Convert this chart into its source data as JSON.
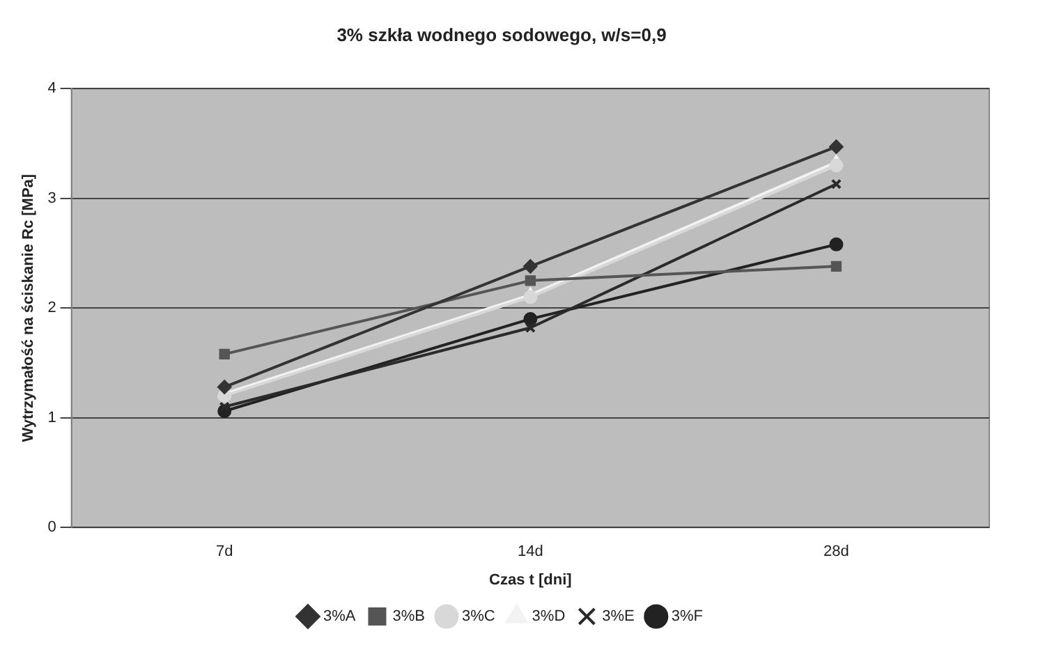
{
  "chart_data": {
    "type": "line",
    "title": "3% szkła wodnego sodowego, w/s=0,9",
    "xlabel": "Czas t [dni]",
    "ylabel": "Wytrzymałość na ściskanie Rc [MPa]",
    "categories": [
      "7d",
      "14d",
      "28d"
    ],
    "ylim": [
      0,
      4
    ],
    "yticks": [
      0,
      1,
      2,
      3,
      4
    ],
    "grid": "y",
    "legend": "bottom",
    "series": [
      {
        "name": "3%A",
        "color": "#333333",
        "marker": "diamond",
        "values": [
          1.28,
          2.38,
          3.47
        ]
      },
      {
        "name": "3%B",
        "color": "#555555",
        "marker": "square",
        "values": [
          1.58,
          2.25,
          2.38
        ]
      },
      {
        "name": "3%C",
        "color": "#d8d8d8",
        "marker": "circle",
        "values": [
          1.2,
          2.1,
          3.3
        ]
      },
      {
        "name": "3%D",
        "color": "#f2f2f2",
        "marker": "triangle",
        "values": [
          1.22,
          2.12,
          3.33
        ]
      },
      {
        "name": "3%E",
        "color": "#2a2a2a",
        "marker": "cross",
        "values": [
          1.1,
          1.82,
          3.13
        ]
      },
      {
        "name": "3%F",
        "color": "#222222",
        "marker": "circle",
        "values": [
          1.06,
          1.9,
          2.58
        ]
      }
    ]
  }
}
